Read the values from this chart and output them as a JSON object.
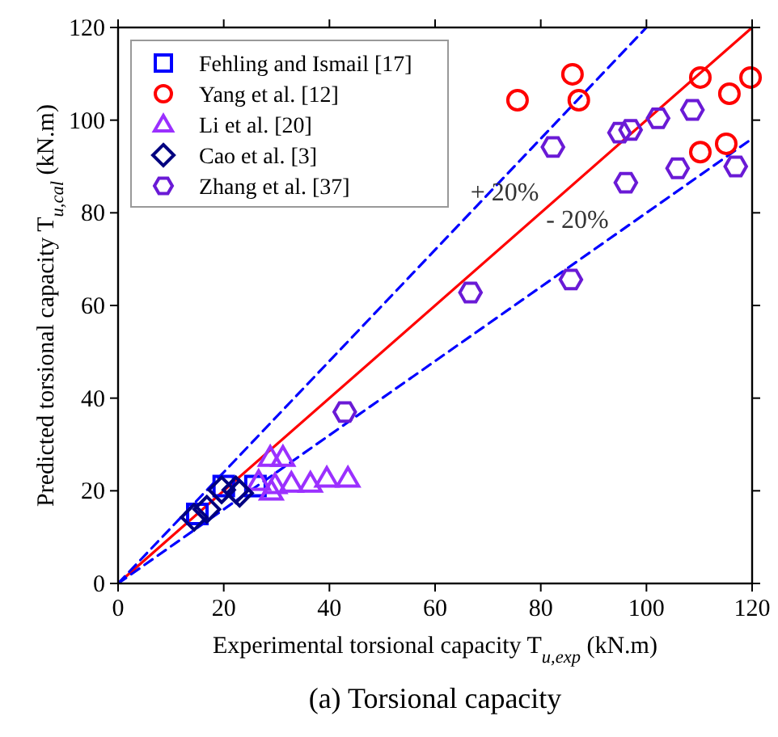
{
  "chart_data": {
    "type": "scatter",
    "title": "(a) Torsional capacity",
    "xlabel": "Experimental torsional capacity T$_{u,exp}$ (kN.m)",
    "ylabel": "Predicted torsional capacity T$_{u,cal}$ (kN.m)",
    "xlim": [
      0,
      120
    ],
    "ylim": [
      0,
      120
    ],
    "xticks": [
      0,
      20,
      40,
      60,
      80,
      100,
      120
    ],
    "yticks": [
      0,
      20,
      40,
      60,
      80,
      100,
      120
    ],
    "grid": false,
    "legend": "top left",
    "series": [
      {
        "name": "Fehling and Ismail [17]",
        "color": "#0000ff",
        "marker": "square",
        "x": [
          15,
          20,
          26
        ],
        "values": [
          15,
          21,
          21
        ]
      },
      {
        "name": "Yang et al. [12]",
        "color": "#ff0000",
        "marker": "circle",
        "x": [
          75.6,
          86,
          87.2,
          110.2,
          115.7,
          119.7,
          110.2,
          115.1
        ],
        "values": [
          104.3,
          109.9,
          104.3,
          109.2,
          105.7,
          109.2,
          93.1,
          94.9
        ]
      },
      {
        "name": "Li et al. [20]",
        "color": "#9b30ff",
        "marker": "triangle",
        "x": [
          28.8,
          31.2,
          26.6,
          29,
          32.8,
          36.4,
          39.5,
          43.5,
          29.7
        ],
        "values": [
          27.2,
          27.2,
          22,
          19.9,
          21.6,
          21.6,
          22.7,
          22.7,
          21.3
        ]
      },
      {
        "name": "Cao et al. [3]",
        "color": "#000080",
        "marker": "diamond",
        "x": [
          14.4,
          16.8,
          19.6,
          22.3,
          23
        ],
        "values": [
          14.3,
          16,
          20.2,
          20.2,
          19.5
        ]
      },
      {
        "name": "Zhang et al. [37]",
        "color": "#6a1ad6",
        "x": [
          42.9,
          66.7,
          85.7,
          82.3,
          94.9,
          97,
          102.2,
          108.7,
          96.1,
          105.9,
          116.9
        ],
        "values": [
          37,
          62.8,
          65.6,
          94.2,
          97.3,
          97.9,
          100.4,
          102.2,
          86.5,
          89.6,
          90
        ]
      },
      {
        "type": "line",
        "color": "#ff0000",
        "line_style": "solid",
        "x": [
          0,
          120
        ],
        "values": [
          0,
          120
        ]
      },
      {
        "type": "line",
        "color": "#0000ff",
        "line_style": "dashed",
        "x": [
          0,
          100
        ],
        "values": [
          0,
          120
        ]
      },
      {
        "type": "line",
        "color": "#0000ff",
        "line_style": "dashed",
        "x": [
          0,
          120
        ],
        "values": [
          0,
          96
        ]
      }
    ],
    "annotations": [
      "+ 20%",
      "- 20%"
    ]
  }
}
